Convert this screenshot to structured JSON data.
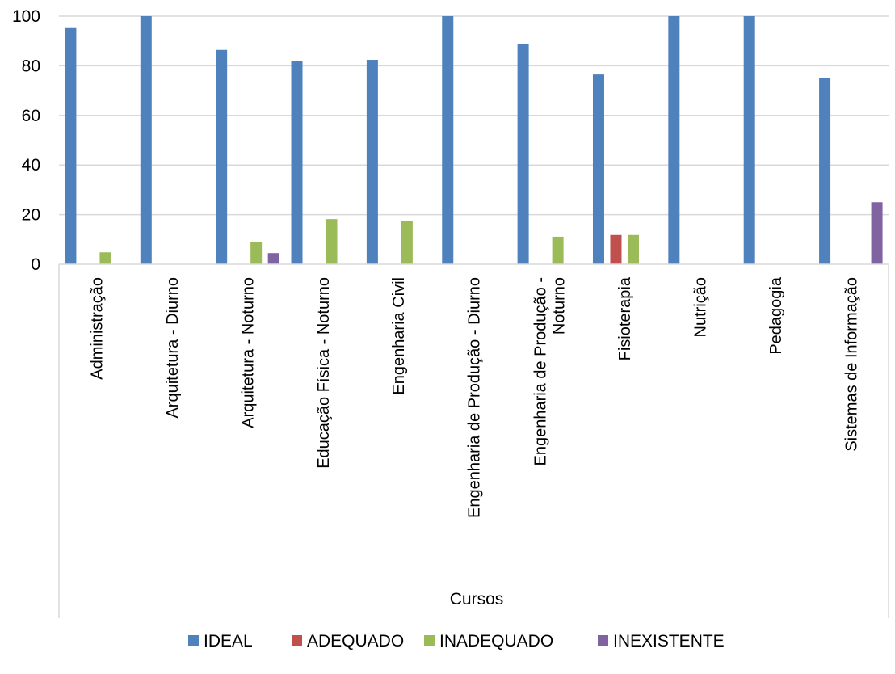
{
  "chart_data": {
    "type": "bar",
    "xlabel": "Cursos",
    "ylabel": "",
    "ylim": [
      0,
      100
    ],
    "yticks": [
      0,
      20,
      40,
      60,
      80,
      100
    ],
    "grid": true,
    "legend_position": "bottom",
    "categories": [
      [
        "Administração"
      ],
      [
        "Arquitetura - Diurno"
      ],
      [
        "Arquitetura - Noturno"
      ],
      [
        "Educação Física - Noturno"
      ],
      [
        "Engenharia Civil"
      ],
      [
        "Engenharia de Produção - Diurno"
      ],
      [
        "Engenharia de Produção -",
        "Noturno"
      ],
      [
        "Fisioterapia"
      ],
      [
        "Nutrição"
      ],
      [
        "Pedagogia"
      ],
      [
        "Sistemas de Informação"
      ]
    ],
    "series": [
      {
        "name": "IDEAL",
        "color": "#4F81BD",
        "values": [
          95.2,
          100,
          86.4,
          81.8,
          82.4,
          100,
          88.9,
          76.5,
          100,
          100,
          75
        ]
      },
      {
        "name": "ADEQUADO",
        "color": "#C0504D",
        "values": [
          0,
          0,
          0,
          0,
          0,
          0,
          0,
          11.8,
          0,
          0,
          0
        ]
      },
      {
        "name": "INADEQUADO",
        "color": "#9BBB59",
        "values": [
          4.8,
          0,
          9.1,
          18.2,
          17.6,
          0,
          11.1,
          11.8,
          0,
          0,
          0
        ]
      },
      {
        "name": "INEXISTENTE",
        "color": "#8064A2",
        "values": [
          0,
          0,
          4.5,
          0,
          0,
          0,
          0,
          0,
          0,
          0,
          25
        ]
      }
    ]
  }
}
